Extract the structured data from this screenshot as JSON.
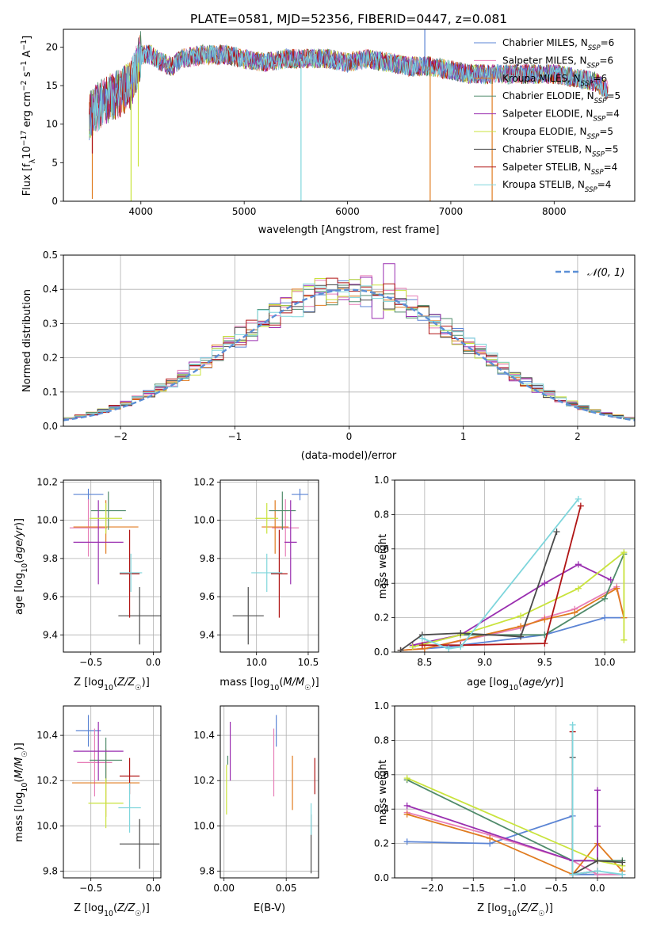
{
  "figure": {
    "title": "PLATE=0581, MJD=52356, FIBERID=0447, z=0.081"
  },
  "colors": {
    "Chabrier MILES": "#5b84d4",
    "Salpeter MILES": "#e77fb8",
    "Kroupa MILES": "#e07b1f",
    "Chabrier ELODIE": "#4f8a6a",
    "Salpeter ELODIE": "#9a2fb0",
    "Kroupa ELODIE": "#c9e33c",
    "Chabrier STELIB": "#4a4a4a",
    "Salpeter STELIB": "#b01515",
    "Kroupa STELIB": "#7fd6dc",
    "normal_curve": "#5b8fd6",
    "grid": "#b0b0b0"
  },
  "chart_data": [
    {
      "id": "spectrum",
      "type": "line",
      "xlabel": "wavelength [Angstrom, rest frame]",
      "ylabel": "Flux [f_λ10^-17 erg cm^-2 s^-1 A^-1]",
      "xlim": [
        3250,
        8780
      ],
      "ylim": [
        0,
        22.3
      ],
      "xticks": [
        4000,
        5000,
        6000,
        7000,
        8000
      ],
      "yticks": [
        0,
        5,
        10,
        15,
        20
      ],
      "grid": false,
      "legend_position": "top-right",
      "legend": [
        {
          "label": "Chabrier MILES, N",
          "sub": "SSP",
          "suffix": "=6",
          "color_key": "Chabrier MILES"
        },
        {
          "label": "Salpeter MILES, N",
          "sub": "SSP",
          "suffix": "=6",
          "color_key": "Salpeter MILES"
        },
        {
          "label": "Kroupa MILES, N",
          "sub": "SSP",
          "suffix": "=6",
          "color_key": "Kroupa MILES"
        },
        {
          "label": "Chabrier ELODIE, N",
          "sub": "SSP",
          "suffix": "=5",
          "color_key": "Chabrier ELODIE"
        },
        {
          "label": "Salpeter ELODIE, N",
          "sub": "SSP",
          "suffix": "=4",
          "color_key": "Salpeter ELODIE"
        },
        {
          "label": "Kroupa ELODIE, N",
          "sub": "SSP",
          "suffix": "=5",
          "color_key": "Kroupa ELODIE"
        },
        {
          "label": "Chabrier STELIB, N",
          "sub": "SSP",
          "suffix": "=5",
          "color_key": "Chabrier STELIB"
        },
        {
          "label": "Salpeter STELIB, N",
          "sub": "SSP",
          "suffix": "=4",
          "color_key": "Salpeter STELIB"
        },
        {
          "label": "Kroupa STELIB, N",
          "sub": "SSP",
          "suffix": "=4",
          "color_key": "Kroupa STELIB"
        }
      ],
      "continuum": [
        [
          3500,
          11.0
        ],
        [
          3600,
          12.5
        ],
        [
          3700,
          13.5
        ],
        [
          3800,
          14.0
        ],
        [
          3900,
          15.0
        ],
        [
          4000,
          19.0
        ],
        [
          4100,
          19.0
        ],
        [
          4200,
          18.0
        ],
        [
          4300,
          17.5
        ],
        [
          4400,
          18.5
        ],
        [
          4600,
          19.0
        ],
        [
          4800,
          19.0
        ],
        [
          5000,
          18.5
        ],
        [
          5200,
          18.0
        ],
        [
          5400,
          18.5
        ],
        [
          5600,
          18.5
        ],
        [
          5800,
          18.5
        ],
        [
          6000,
          18.0
        ],
        [
          6200,
          18.5
        ],
        [
          6400,
          18.0
        ],
        [
          6600,
          17.5
        ],
        [
          6800,
          17.5
        ],
        [
          7000,
          17.0
        ],
        [
          7200,
          16.5
        ],
        [
          7400,
          16.5
        ],
        [
          7600,
          16.5
        ],
        [
          7800,
          16.5
        ],
        [
          8000,
          16.5
        ],
        [
          8200,
          16.0
        ],
        [
          8400,
          15.5
        ],
        [
          8500,
          14.5
        ]
      ],
      "features": [
        {
          "x": 3530,
          "y": 0.3,
          "series": "Kroupa MILES"
        },
        {
          "x": 3530,
          "y": 6.2,
          "series": "Salpeter STELIB"
        },
        {
          "x": 3905,
          "y": 0.0,
          "series": "Kroupa ELODIE"
        },
        {
          "x": 3975,
          "y": 4.5,
          "series": "Kroupa ELODIE"
        },
        {
          "x": 5550,
          "y": 0.0,
          "series": "Kroupa STELIB"
        },
        {
          "x": 6800,
          "y": 0.0,
          "series": "Kroupa MILES"
        },
        {
          "x": 7400,
          "y": 0.0,
          "series": "Kroupa MILES"
        },
        {
          "x": 6748,
          "y": 22.3,
          "series": "Chabrier MILES"
        }
      ]
    },
    {
      "id": "residuals",
      "type": "bar",
      "xlabel": "(data-model)/error",
      "ylabel": "Normed distribution",
      "xlim": [
        -2.5,
        2.5
      ],
      "ylim": [
        0,
        0.5
      ],
      "xticks": [
        -2,
        -1,
        0,
        1,
        2
      ],
      "yticks": [
        0.0,
        0.1,
        0.2,
        0.3,
        0.4,
        0.5
      ],
      "grid": true,
      "legend_position": "top-right",
      "legend": [
        {
          "label": "𝒩(0, 1)",
          "style": "dashed",
          "color_key": "normal_curve"
        }
      ],
      "bin_width": 0.1,
      "range": [
        -2.5,
        2.5
      ]
    },
    {
      "id": "age_vs_Z",
      "type": "scatter",
      "xlabel": "Z [log10(Z/Z☉)]",
      "ylabel": "age [log10(age/yr)]",
      "xlim": [
        -0.72,
        0.06
      ],
      "ylim": [
        9.31,
        10.21
      ],
      "xticks": [
        -0.5,
        0.0
      ],
      "yticks": [
        9.4,
        9.6,
        9.8,
        10.0,
        10.2
      ],
      "grid": true,
      "points": [
        {
          "series": "Chabrier MILES",
          "x": -0.52,
          "y": 10.135,
          "xerr": 0.12,
          "yerr": 0.03
        },
        {
          "series": "Salpeter MILES",
          "x": -0.52,
          "y": 9.96,
          "xerr": 0.15,
          "yerr": 0.15
        },
        {
          "series": "Kroupa MILES",
          "x": -0.38,
          "y": 9.965,
          "xerr": 0.26,
          "yerr": 0.14
        },
        {
          "series": "Chabrier ELODIE",
          "x": -0.36,
          "y": 10.05,
          "xerr": 0.14,
          "yerr": 0.1
        },
        {
          "series": "Salpeter ELODIE",
          "x": -0.44,
          "y": 9.885,
          "xerr": 0.2,
          "yerr": 0.22
        },
        {
          "series": "Kroupa ELODIE",
          "x": -0.38,
          "y": 10.01,
          "xerr": 0.13,
          "yerr": 0.08
        },
        {
          "series": "Chabrier STELIB",
          "x": -0.11,
          "y": 9.5,
          "xerr": 0.17,
          "yerr": 0.15
        },
        {
          "series": "Salpeter STELIB",
          "x": -0.19,
          "y": 9.72,
          "xerr": 0.08,
          "yerr": 0.23
        },
        {
          "series": "Kroupa STELIB",
          "x": -0.18,
          "y": 9.725,
          "xerr": 0.09,
          "yerr": 0.1
        }
      ]
    },
    {
      "id": "age_vs_mass",
      "type": "scatter",
      "xlabel": "mass [log10(M/M☉)]",
      "ylabel": "",
      "xlim": [
        9.65,
        10.6
      ],
      "ylim": [
        9.31,
        10.21
      ],
      "xticks": [
        10.0,
        10.5
      ],
      "yticks": [
        9.4,
        9.6,
        9.8,
        10.0,
        10.2
      ],
      "grid": true,
      "points": [
        {
          "series": "Chabrier MILES",
          "x": 10.42,
          "y": 10.135,
          "xerr": 0.08,
          "yerr": 0.03
        },
        {
          "series": "Salpeter MILES",
          "x": 10.28,
          "y": 9.96,
          "xerr": 0.13,
          "yerr": 0.15
        },
        {
          "series": "Kroupa MILES",
          "x": 10.18,
          "y": 9.965,
          "xerr": 0.13,
          "yerr": 0.14
        },
        {
          "series": "Chabrier ELODIE",
          "x": 10.25,
          "y": 10.05,
          "xerr": 0.13,
          "yerr": 0.1
        },
        {
          "series": "Salpeter ELODIE",
          "x": 10.33,
          "y": 9.885,
          "xerr": 0.06,
          "yerr": 0.22
        },
        {
          "series": "Kroupa ELODIE",
          "x": 10.1,
          "y": 10.01,
          "xerr": 0.11,
          "yerr": 0.08
        },
        {
          "series": "Chabrier STELIB",
          "x": 9.92,
          "y": 9.5,
          "xerr": 0.15,
          "yerr": 0.15
        },
        {
          "series": "Salpeter STELIB",
          "x": 10.22,
          "y": 9.72,
          "xerr": 0.08,
          "yerr": 0.23
        },
        {
          "series": "Kroupa STELIB",
          "x": 10.1,
          "y": 9.725,
          "xerr": 0.15,
          "yerr": 0.1
        }
      ]
    },
    {
      "id": "weight_vs_age",
      "type": "line",
      "xlabel": "age [log10(age/yr)]",
      "ylabel": "mass weight",
      "xlim": [
        8.25,
        10.25
      ],
      "ylim": [
        0,
        1.0
      ],
      "xticks": [
        8.5,
        9.0,
        9.5,
        10.0
      ],
      "yticks": [
        0.0,
        0.2,
        0.4,
        0.6,
        0.8,
        1.0
      ],
      "grid": true,
      "series": [
        {
          "series": "Chabrier MILES",
          "x": [
            8.3,
            8.5,
            8.7,
            8.8,
            9.5,
            10.0,
            10.16
          ],
          "y": [
            0.01,
            0.02,
            0.03,
            0.04,
            0.1,
            0.2,
            0.2
          ]
        },
        {
          "series": "Salpeter MILES",
          "x": [
            8.3,
            8.5,
            9.3,
            9.5,
            9.75,
            10.1,
            10.16
          ],
          "y": [
            0.01,
            0.02,
            0.14,
            0.2,
            0.25,
            0.38,
            0.2
          ]
        },
        {
          "series": "Kroupa MILES",
          "x": [
            8.3,
            8.5,
            9.3,
            9.5,
            9.75,
            10.1,
            10.16
          ],
          "y": [
            0.01,
            0.02,
            0.15,
            0.19,
            0.23,
            0.37,
            0.2
          ]
        },
        {
          "series": "Chabrier ELODIE",
          "x": [
            8.4,
            8.8,
            9.5,
            10.0,
            10.16
          ],
          "y": [
            0.03,
            0.1,
            0.1,
            0.31,
            0.57
          ]
        },
        {
          "series": "Salpeter ELODIE",
          "x": [
            8.4,
            8.8,
            9.5,
            9.78,
            10.05
          ],
          "y": [
            0.04,
            0.1,
            0.4,
            0.51,
            0.42
          ]
        },
        {
          "series": "Kroupa ELODIE",
          "x": [
            8.4,
            8.8,
            9.3,
            9.78,
            10.16,
            10.16
          ],
          "y": [
            0.03,
            0.1,
            0.21,
            0.37,
            0.58,
            0.07
          ]
        },
        {
          "series": "Chabrier STELIB",
          "x": [
            8.3,
            8.48,
            8.8,
            9.3,
            9.6
          ],
          "y": [
            0.01,
            0.1,
            0.11,
            0.09,
            0.7
          ]
        },
        {
          "series": "Salpeter STELIB",
          "x": [
            8.48,
            8.8,
            9.5,
            9.8
          ],
          "y": [
            0.04,
            0.04,
            0.05,
            0.85
          ]
        },
        {
          "series": "Kroupa STELIB",
          "x": [
            8.48,
            8.7,
            8.8,
            9.78
          ],
          "y": [
            0.08,
            0.02,
            0.03,
            0.89
          ]
        }
      ]
    },
    {
      "id": "mass_vs_Z",
      "type": "scatter",
      "xlabel": "Z [log10(Z/Z☉)]",
      "ylabel": "mass [log10(M/M☉)]",
      "xlim": [
        -0.72,
        0.06
      ],
      "ylim": [
        9.77,
        10.53
      ],
      "xticks": [
        -0.5,
        0.0
      ],
      "yticks": [
        9.8,
        10.0,
        10.2,
        10.4
      ],
      "grid": true,
      "points": [
        {
          "series": "Chabrier MILES",
          "x": -0.52,
          "y": 10.42,
          "xerr": 0.1,
          "yerr": 0.07
        },
        {
          "series": "Salpeter MILES",
          "x": -0.47,
          "y": 10.28,
          "xerr": 0.14,
          "yerr": 0.15
        },
        {
          "series": "Kroupa MILES",
          "x": -0.38,
          "y": 10.19,
          "xerr": 0.27,
          "yerr": 0.15
        },
        {
          "series": "Chabrier ELODIE",
          "x": -0.38,
          "y": 10.29,
          "xerr": 0.13,
          "yerr": 0.1
        },
        {
          "series": "Salpeter ELODIE",
          "x": -0.44,
          "y": 10.33,
          "xerr": 0.2,
          "yerr": 0.13
        },
        {
          "series": "Kroupa ELODIE",
          "x": -0.38,
          "y": 10.1,
          "xerr": 0.14,
          "yerr": 0.11
        },
        {
          "series": "Chabrier STELIB",
          "x": -0.11,
          "y": 9.92,
          "xerr": 0.16,
          "yerr": 0.11
        },
        {
          "series": "Salpeter STELIB",
          "x": -0.19,
          "y": 10.22,
          "xerr": 0.08,
          "yerr": 0.08
        },
        {
          "series": "Kroupa STELIB",
          "x": -0.19,
          "y": 10.08,
          "xerr": 0.09,
          "yerr": 0.11
        }
      ]
    },
    {
      "id": "mass_vs_EBV",
      "type": "scatter",
      "xlabel": "E(B-V)",
      "ylabel": "",
      "xlim": [
        -0.003,
        0.076
      ],
      "ylim": [
        9.77,
        10.53
      ],
      "xticks": [
        0.0,
        0.05
      ],
      "yticks": [
        9.8,
        10.0,
        10.2,
        10.4
      ],
      "grid": true,
      "points": [
        {
          "series": "Chabrier MILES",
          "x": 0.042,
          "y": 10.42,
          "xerr": 0,
          "yerr": 0.07
        },
        {
          "series": "Salpeter MILES",
          "x": 0.04,
          "y": 10.28,
          "xerr": 0,
          "yerr": 0.15
        },
        {
          "series": "Kroupa MILES",
          "x": 0.055,
          "y": 10.19,
          "xerr": 0,
          "yerr": 0.12
        },
        {
          "series": "Chabrier ELODIE",
          "x": 0.003,
          "y": 10.29,
          "xerr": 0,
          "yerr": 0.02
        },
        {
          "series": "Salpeter ELODIE",
          "x": 0.005,
          "y": 10.33,
          "xerr": 0,
          "yerr": 0.13
        },
        {
          "series": "Kroupa ELODIE",
          "x": 0.002,
          "y": 10.16,
          "xerr": 0,
          "yerr": 0.11
        },
        {
          "series": "Chabrier STELIB",
          "x": 0.07,
          "y": 9.92,
          "xerr": 0,
          "yerr": 0.13
        },
        {
          "series": "Salpeter STELIB",
          "x": 0.073,
          "y": 10.22,
          "xerr": 0,
          "yerr": 0.08
        },
        {
          "series": "Kroupa STELIB",
          "x": 0.07,
          "y": 10.03,
          "xerr": 0,
          "yerr": 0.07
        }
      ]
    },
    {
      "id": "weight_vs_Z",
      "type": "line",
      "xlabel": "Z [log10(Z/Z☉)]",
      "ylabel": "mass weight",
      "xlim": [
        -2.45,
        0.45
      ],
      "ylim": [
        0,
        1.0
      ],
      "xticks": [
        -2.0,
        -1.5,
        -1.0,
        -0.5,
        0.0
      ],
      "yticks": [
        0.0,
        0.2,
        0.4,
        0.6,
        0.8,
        1.0
      ],
      "grid": true,
      "series": [
        {
          "series": "Chabrier MILES",
          "x": [
            -2.3,
            -1.3,
            -0.3,
            -0.3,
            0.0,
            0.3
          ],
          "y": [
            0.21,
            0.2,
            0.36,
            0.02,
            0.02,
            0.02
          ]
        },
        {
          "series": "Salpeter MILES",
          "x": [
            -2.3,
            -1.3,
            -0.3,
            0.0,
            0.3
          ],
          "y": [
            0.38,
            0.25,
            0.1,
            0.02,
            0.02
          ]
        },
        {
          "series": "Kroupa MILES",
          "x": [
            -2.3,
            -1.3,
            -0.3,
            0.0,
            0.3
          ],
          "y": [
            0.37,
            0.23,
            0.02,
            0.2,
            0.04
          ]
        },
        {
          "series": "Chabrier ELODIE",
          "x": [
            -2.3,
            -0.3,
            0.0,
            0.3
          ],
          "y": [
            0.57,
            0.1,
            0.1,
            0.1
          ]
        },
        {
          "series": "Salpeter ELODIE",
          "x": [
            -2.3,
            -0.3,
            0.0,
            0.0,
            0.0
          ],
          "y": [
            0.42,
            0.1,
            0.1,
            0.51,
            0.3
          ]
        },
        {
          "series": "Kroupa ELODIE",
          "x": [
            -2.3,
            0.0,
            0.3
          ],
          "y": [
            0.58,
            0.1,
            0.07
          ]
        },
        {
          "series": "Chabrier STELIB",
          "x": [
            -0.3,
            -0.3,
            0.0,
            0.3
          ],
          "y": [
            0.7,
            0.02,
            0.1,
            0.09
          ]
        },
        {
          "series": "Salpeter STELIB",
          "x": [
            -0.3,
            -0.3,
            0.0
          ],
          "y": [
            0.85,
            0.02,
            0.04
          ]
        },
        {
          "series": "Kroupa STELIB",
          "x": [
            -0.3,
            -0.3,
            0.0,
            0.3
          ],
          "y": [
            0.89,
            0.02,
            0.04,
            0.02
          ]
        }
      ]
    }
  ]
}
